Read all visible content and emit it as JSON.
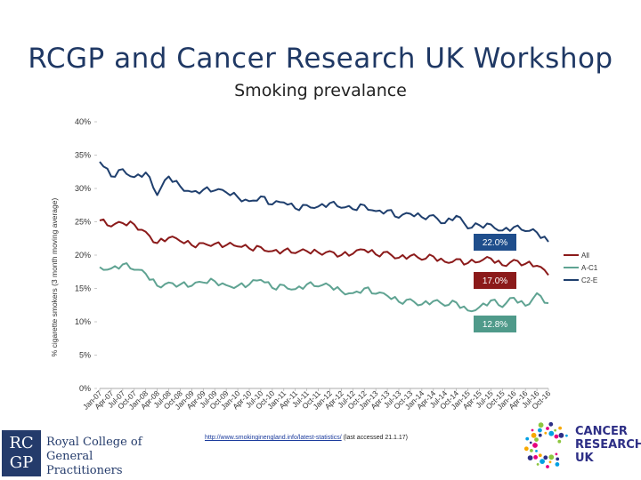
{
  "slide": {
    "title": "RCGP and Cancer Research UK Workshop",
    "subtitle": "Smoking prevalance",
    "source_link": "http://www.smokinginengland.info/latest-statistics/",
    "source_note": "(last accessed 21.1.17)"
  },
  "logos": {
    "rcgp_letters": [
      "RC",
      "GP"
    ],
    "rcgp_name_lines": [
      "Royal College of",
      "General Practitioners"
    ],
    "cruk_lines": [
      "CANCER",
      "RESEARCH",
      "UK"
    ]
  },
  "chart_data": {
    "type": "line",
    "title": "Smoking prevalance",
    "xlabel": "",
    "ylabel": "% cigarette smokers (3 month moving average)",
    "ylim": [
      0,
      40
    ],
    "yticks": [
      "0%",
      "5%",
      "10%",
      "15%",
      "20%",
      "25%",
      "30%",
      "35%",
      "40%"
    ],
    "categories": [
      "Jan-07",
      "Apr-07",
      "Jul-07",
      "Oct-07",
      "Jan-08",
      "Apr-08",
      "Jul-08",
      "Oct-08",
      "Jan-09",
      "Apr-09",
      "Jul-09",
      "Oct-09",
      "Jan-10",
      "Apr-10",
      "Jul-10",
      "Oct-10",
      "Jan-11",
      "Apr-11",
      "Jul-11",
      "Oct-11",
      "Jan-12",
      "Apr-12",
      "Jul-12",
      "Oct-12",
      "Jan-13",
      "Apr-13",
      "Jul-13",
      "Oct-13",
      "Jan-14",
      "Apr-14",
      "Jul-14",
      "Oct-14",
      "Jan-15",
      "Apr-15",
      "Jul-15",
      "Oct-15",
      "Jan-16",
      "Apr-16",
      "Jul-16",
      "Oct-16"
    ],
    "legend_position": "right",
    "series": [
      {
        "name": "All",
        "color": "#8b1a1a",
        "values": [
          25.2,
          24.3,
          24.8,
          24.6,
          23.5,
          21.8,
          22.6,
          22.1,
          21.5,
          21.8,
          21.7,
          21.5,
          21.3,
          21.0,
          21.2,
          20.6,
          20.7,
          20.3,
          20.6,
          20.4,
          20.6,
          20.0,
          20.2,
          20.8,
          20.1,
          20.5,
          19.6,
          19.9,
          19.3,
          19.8,
          19.0,
          19.4,
          18.8,
          19.0,
          19.5,
          18.5,
          19.3,
          18.7,
          18.4,
          17.0
        ]
      },
      {
        "name": "A-C1",
        "color": "#5fa392",
        "values": [
          18.2,
          18.0,
          18.6,
          17.8,
          17.2,
          15.4,
          15.9,
          15.6,
          15.4,
          15.9,
          16.1,
          15.5,
          15.4,
          15.6,
          16.3,
          15.1,
          15.5,
          14.9,
          15.6,
          15.3,
          15.4,
          14.6,
          14.3,
          15.0,
          14.2,
          13.9,
          13.0,
          13.4,
          12.6,
          13.1,
          12.4,
          12.9,
          11.7,
          12.2,
          13.2,
          12.2,
          13.6,
          12.4,
          14.3,
          12.8
        ]
      },
      {
        "name": "C2-E",
        "color": "#1f3f6e",
        "values": [
          34.0,
          31.8,
          32.9,
          31.7,
          32.4,
          29.0,
          31.8,
          30.3,
          29.5,
          29.8,
          29.7,
          29.4,
          28.7,
          28.1,
          28.8,
          27.6,
          27.9,
          27.0,
          27.5,
          27.3,
          27.8,
          27.1,
          26.9,
          27.5,
          26.6,
          26.7,
          25.6,
          26.2,
          25.7,
          26.0,
          24.8,
          25.9,
          24.0,
          24.5,
          24.6,
          23.7,
          24.2,
          23.6,
          23.4,
          22.0
        ]
      }
    ],
    "annotations": [
      {
        "series": "C2-E",
        "text": "22.0%",
        "color": "#1f4e8c"
      },
      {
        "series": "All",
        "text": "17.0%",
        "color": "#8b1a1a"
      },
      {
        "series": "A-C1",
        "text": "12.8%",
        "color": "#4f9a8a"
      }
    ]
  }
}
